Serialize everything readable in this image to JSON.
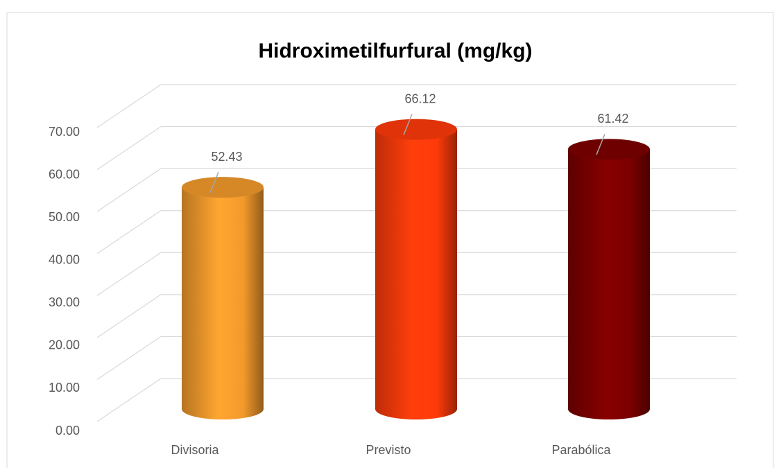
{
  "chart_data": {
    "type": "bar3d",
    "title": "Hidroximetilfurfural (mg/kg)",
    "categories": [
      "Divisoria",
      "Previsto",
      "Parabólica"
    ],
    "values": [
      52.43,
      66.12,
      61.42
    ],
    "colors": [
      "#f39a2c",
      "#ff3a0a",
      "#7d0000"
    ],
    "ylim": [
      0,
      70
    ],
    "yticks": [
      {
        "value": 0,
        "label": "0.00"
      },
      {
        "value": 10,
        "label": "10.00"
      },
      {
        "value": 20,
        "label": "20.00"
      },
      {
        "value": 30,
        "label": "30.00"
      },
      {
        "value": 40,
        "label": "40.00"
      },
      {
        "value": 50,
        "label": "50.00"
      },
      {
        "value": 60,
        "label": "60.00"
      },
      {
        "value": 70,
        "label": "70.00"
      }
    ],
    "grid": true
  }
}
